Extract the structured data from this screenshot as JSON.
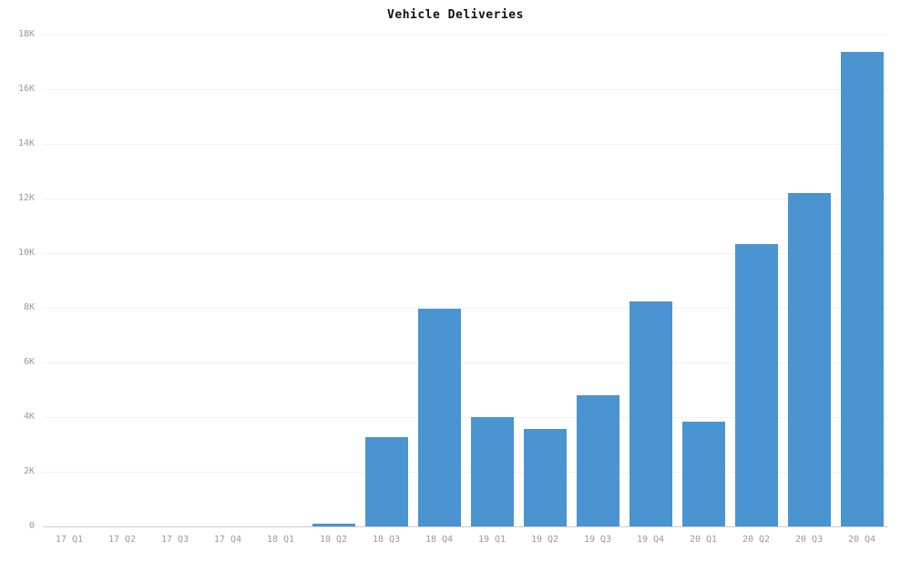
{
  "chart_data": {
    "type": "bar",
    "title": "Vehicle Deliveries",
    "categories": [
      "17 Q1",
      "17 Q2",
      "17 Q3",
      "17 Q4",
      "18 Q1",
      "18 Q2",
      "18 Q3",
      "18 Q4",
      "19 Q1",
      "19 Q2",
      "19 Q3",
      "19 Q4",
      "20 Q1",
      "20 Q2",
      "20 Q3",
      "20 Q4"
    ],
    "values": [
      0,
      0,
      0,
      0,
      0,
      100,
      3268,
      7980,
      3989,
      3553,
      4799,
      8224,
      3838,
      10331,
      12206,
      17353
    ],
    "xlabel": "",
    "ylabel": "",
    "ylim": [
      0,
      18000
    ],
    "yticks": [
      0,
      2000,
      4000,
      6000,
      8000,
      10000,
      12000,
      14000,
      16000,
      18000
    ],
    "ytick_labels": [
      "0",
      "2K",
      "4K",
      "6K",
      "8K",
      "10K",
      "12K",
      "14K",
      "16K",
      "18K"
    ],
    "grid": true,
    "legend": false,
    "colors": {
      "bar": "#4a94d1",
      "tick_label": "#999999",
      "gridline": "#f2f2f2",
      "axis_line": "#cccccc",
      "title": "#111111",
      "background": "#ffffff"
    }
  }
}
